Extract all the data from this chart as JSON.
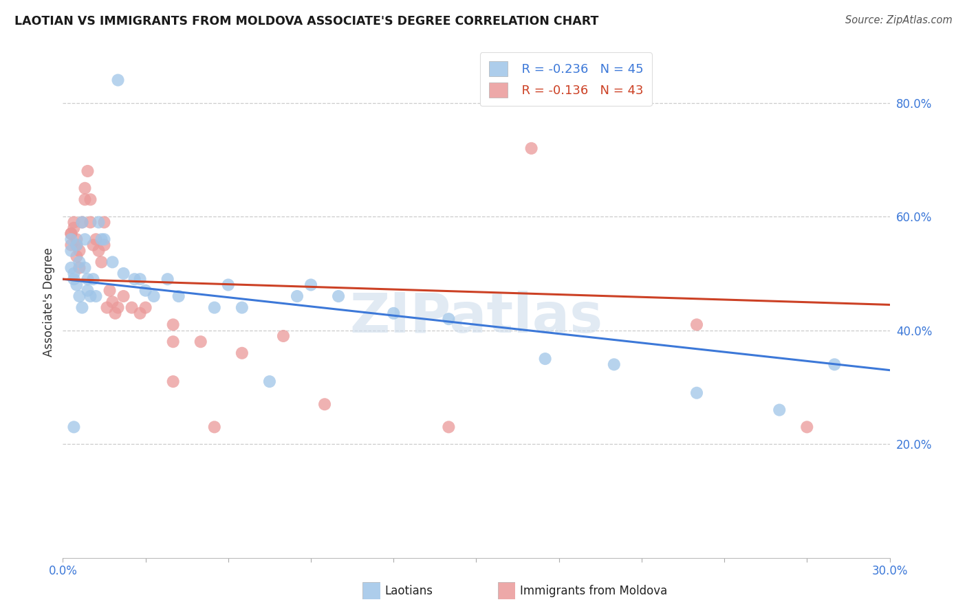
{
  "title": "LAOTIAN VS IMMIGRANTS FROM MOLDOVA ASSOCIATE'S DEGREE CORRELATION CHART",
  "source": "Source: ZipAtlas.com",
  "ylabel": "Associate's Degree",
  "legend_label1": "Laotians",
  "legend_label2": "Immigrants from Moldova",
  "legend_r1": "R = -0.236",
  "legend_n1": "N = 45",
  "legend_r2": "R = -0.136",
  "legend_n2": "N = 43",
  "color_blue": "#9fc5e8",
  "color_pink": "#ea9999",
  "color_trendline_blue": "#3c78d8",
  "color_trendline_pink": "#cc4125",
  "watermark": "ZIPatlas",
  "xlim": [
    0.0,
    0.3
  ],
  "ylim": [
    0.0,
    0.9
  ],
  "xticks": [
    0.0,
    0.03,
    0.06,
    0.09,
    0.12,
    0.15,
    0.18,
    0.21,
    0.24,
    0.27,
    0.3
  ],
  "xticklabels": [
    "0.0%",
    "",
    "",
    "",
    "",
    "",
    "",
    "",
    "",
    "",
    "30.0%"
  ],
  "yticks_right": [
    0.2,
    0.4,
    0.6,
    0.8
  ],
  "ytick_right_labels": [
    "20.0%",
    "40.0%",
    "60.0%",
    "80.0%"
  ],
  "blue_trendline_x": [
    0.0,
    0.3
  ],
  "blue_trendline_y": [
    0.49,
    0.33
  ],
  "pink_trendline_x": [
    0.0,
    0.3
  ],
  "pink_trendline_y": [
    0.49,
    0.445
  ],
  "blue_x": [
    0.02,
    0.003,
    0.003,
    0.003,
    0.004,
    0.004,
    0.005,
    0.005,
    0.006,
    0.006,
    0.007,
    0.007,
    0.008,
    0.008,
    0.009,
    0.009,
    0.01,
    0.011,
    0.012,
    0.013,
    0.015,
    0.018,
    0.022,
    0.026,
    0.028,
    0.03,
    0.033,
    0.038,
    0.042,
    0.055,
    0.06,
    0.065,
    0.075,
    0.085,
    0.09,
    0.1,
    0.12,
    0.14,
    0.175,
    0.2,
    0.23,
    0.26,
    0.28,
    0.004,
    0.014
  ],
  "blue_y": [
    0.84,
    0.56,
    0.54,
    0.51,
    0.5,
    0.49,
    0.48,
    0.55,
    0.52,
    0.46,
    0.44,
    0.59,
    0.56,
    0.51,
    0.49,
    0.47,
    0.46,
    0.49,
    0.46,
    0.59,
    0.56,
    0.52,
    0.5,
    0.49,
    0.49,
    0.47,
    0.46,
    0.49,
    0.46,
    0.44,
    0.48,
    0.44,
    0.31,
    0.46,
    0.48,
    0.46,
    0.43,
    0.42,
    0.35,
    0.34,
    0.29,
    0.26,
    0.34,
    0.23,
    0.56
  ],
  "pink_x": [
    0.003,
    0.003,
    0.003,
    0.004,
    0.004,
    0.005,
    0.005,
    0.005,
    0.006,
    0.006,
    0.007,
    0.008,
    0.008,
    0.009,
    0.01,
    0.01,
    0.011,
    0.012,
    0.013,
    0.014,
    0.015,
    0.015,
    0.016,
    0.017,
    0.018,
    0.019,
    0.02,
    0.022,
    0.025,
    0.028,
    0.03,
    0.04,
    0.05,
    0.065,
    0.08,
    0.04,
    0.055,
    0.095,
    0.14,
    0.17,
    0.23,
    0.27,
    0.04
  ],
  "pink_y": [
    0.57,
    0.55,
    0.57,
    0.59,
    0.58,
    0.56,
    0.53,
    0.55,
    0.51,
    0.54,
    0.59,
    0.63,
    0.65,
    0.68,
    0.63,
    0.59,
    0.55,
    0.56,
    0.54,
    0.52,
    0.59,
    0.55,
    0.44,
    0.47,
    0.45,
    0.43,
    0.44,
    0.46,
    0.44,
    0.43,
    0.44,
    0.41,
    0.38,
    0.36,
    0.39,
    0.31,
    0.23,
    0.27,
    0.23,
    0.72,
    0.41,
    0.23,
    0.38
  ]
}
